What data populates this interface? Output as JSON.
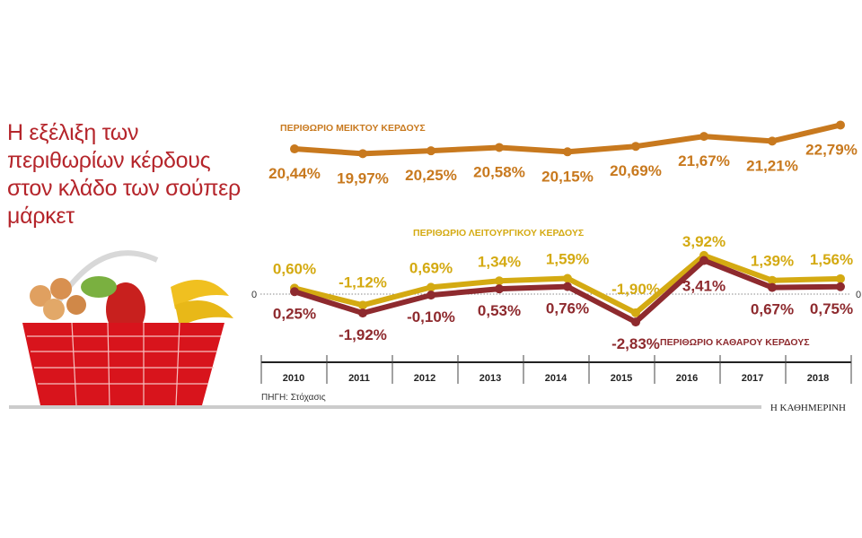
{
  "title": "Η εξέλιξη των περιθωρίων κέρδους στον κλάδο των σούπερ μάρκετ",
  "source": "ΠΗΓΗ: Στόχασις",
  "brand": "Η ΚΑΘΗΜΕΡΙΝΗ",
  "chart_data": {
    "type": "line",
    "categories": [
      "2010",
      "2011",
      "2012",
      "2013",
      "2014",
      "2015",
      "2016",
      "2017",
      "2018"
    ],
    "zero_label": "0",
    "series": [
      {
        "name": "ΠΕΡΙΘΩΡΙΟ ΜΕΙΚΤΟΥ ΚΕΡΔΟΥΣ",
        "color": "#c8791e",
        "values": [
          20.44,
          19.97,
          20.25,
          20.58,
          20.15,
          20.69,
          21.67,
          21.21,
          22.79
        ],
        "labels": [
          "20,44%",
          "19,97%",
          "20,25%",
          "20,58%",
          "20,15%",
          "20,69%",
          "21,67%",
          "21,21%",
          "22,79%"
        ]
      },
      {
        "name": "ΠΕΡΙΘΩΡΙΟ ΛΕΙΤΟΥΡΓΙΚΟΥ ΚΕΡΔΟΥΣ",
        "color": "#d4aa12",
        "values": [
          0.6,
          -1.12,
          0.69,
          1.34,
          1.59,
          -1.9,
          3.92,
          1.39,
          1.56
        ],
        "labels": [
          "0,60%",
          "-1,12%",
          "0,69%",
          "1,34%",
          "1,59%",
          "-1,90%",
          "3,92%",
          "1,39%",
          "1,56%"
        ]
      },
      {
        "name": "ΠΕΡΙΘΩΡΙΟ ΚΑΘΑΡΟΥ ΚΕΡΔΟΥΣ",
        "color": "#8e2a2e",
        "values": [
          0.25,
          -1.92,
          -0.1,
          0.53,
          0.76,
          -2.83,
          3.41,
          0.67,
          0.75
        ],
        "labels": [
          "0,25%",
          "-1,92%",
          "-0,10%",
          "0,53%",
          "0,76%",
          "-2,83%",
          "3,41%",
          "0,67%",
          "0,75%"
        ]
      }
    ]
  }
}
